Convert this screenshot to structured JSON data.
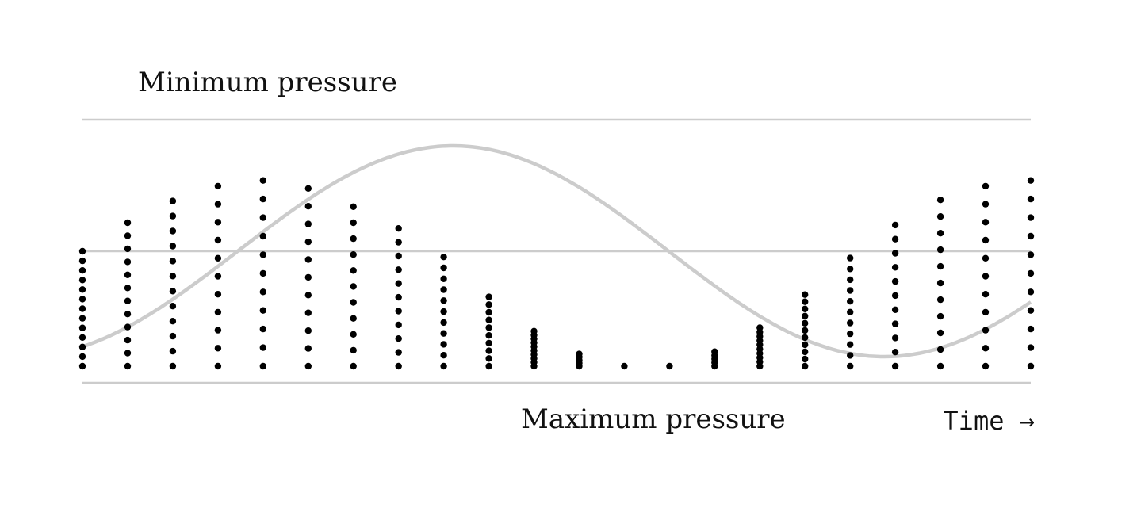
{
  "labels": {
    "min": "Minimum pressure",
    "max": "Maximum pressure",
    "time": "Time →"
  },
  "colors": {
    "reference_lines": "#cccccc",
    "wave": "#cccccc",
    "dots": "#000000"
  },
  "wave": {
    "shape": "sine",
    "cycles": 1.1,
    "note": "pressure curve; peaks toward minimum pressure, trough toward maximum pressure"
  },
  "columns": [
    {
      "top": 0.0,
      "dots": 13
    },
    {
      "top": 0.25,
      "dots": 12
    },
    {
      "top": 0.44,
      "dots": 12
    },
    {
      "top": 0.57,
      "dots": 11
    },
    {
      "top": 0.62,
      "dots": 11
    },
    {
      "top": 0.55,
      "dots": 11
    },
    {
      "top": 0.39,
      "dots": 11
    },
    {
      "top": 0.2,
      "dots": 11
    },
    {
      "top": -0.05,
      "dots": 11
    },
    {
      "top": -0.4,
      "dots": 10
    },
    {
      "top": -0.7,
      "dots": 10
    },
    {
      "top": -0.9,
      "dots": 5
    },
    {
      "top": -1.0,
      "dots": 1
    },
    {
      "top": -1.0,
      "dots": 1
    },
    {
      "top": -0.88,
      "dots": 5
    },
    {
      "top": -0.67,
      "dots": 10
    },
    {
      "top": -0.38,
      "dots": 11
    },
    {
      "top": -0.06,
      "dots": 11
    },
    {
      "top": 0.23,
      "dots": 11
    },
    {
      "top": 0.45,
      "dots": 11
    },
    {
      "top": 0.57,
      "dots": 11
    },
    {
      "top": 0.62,
      "dots": 11
    }
  ]
}
